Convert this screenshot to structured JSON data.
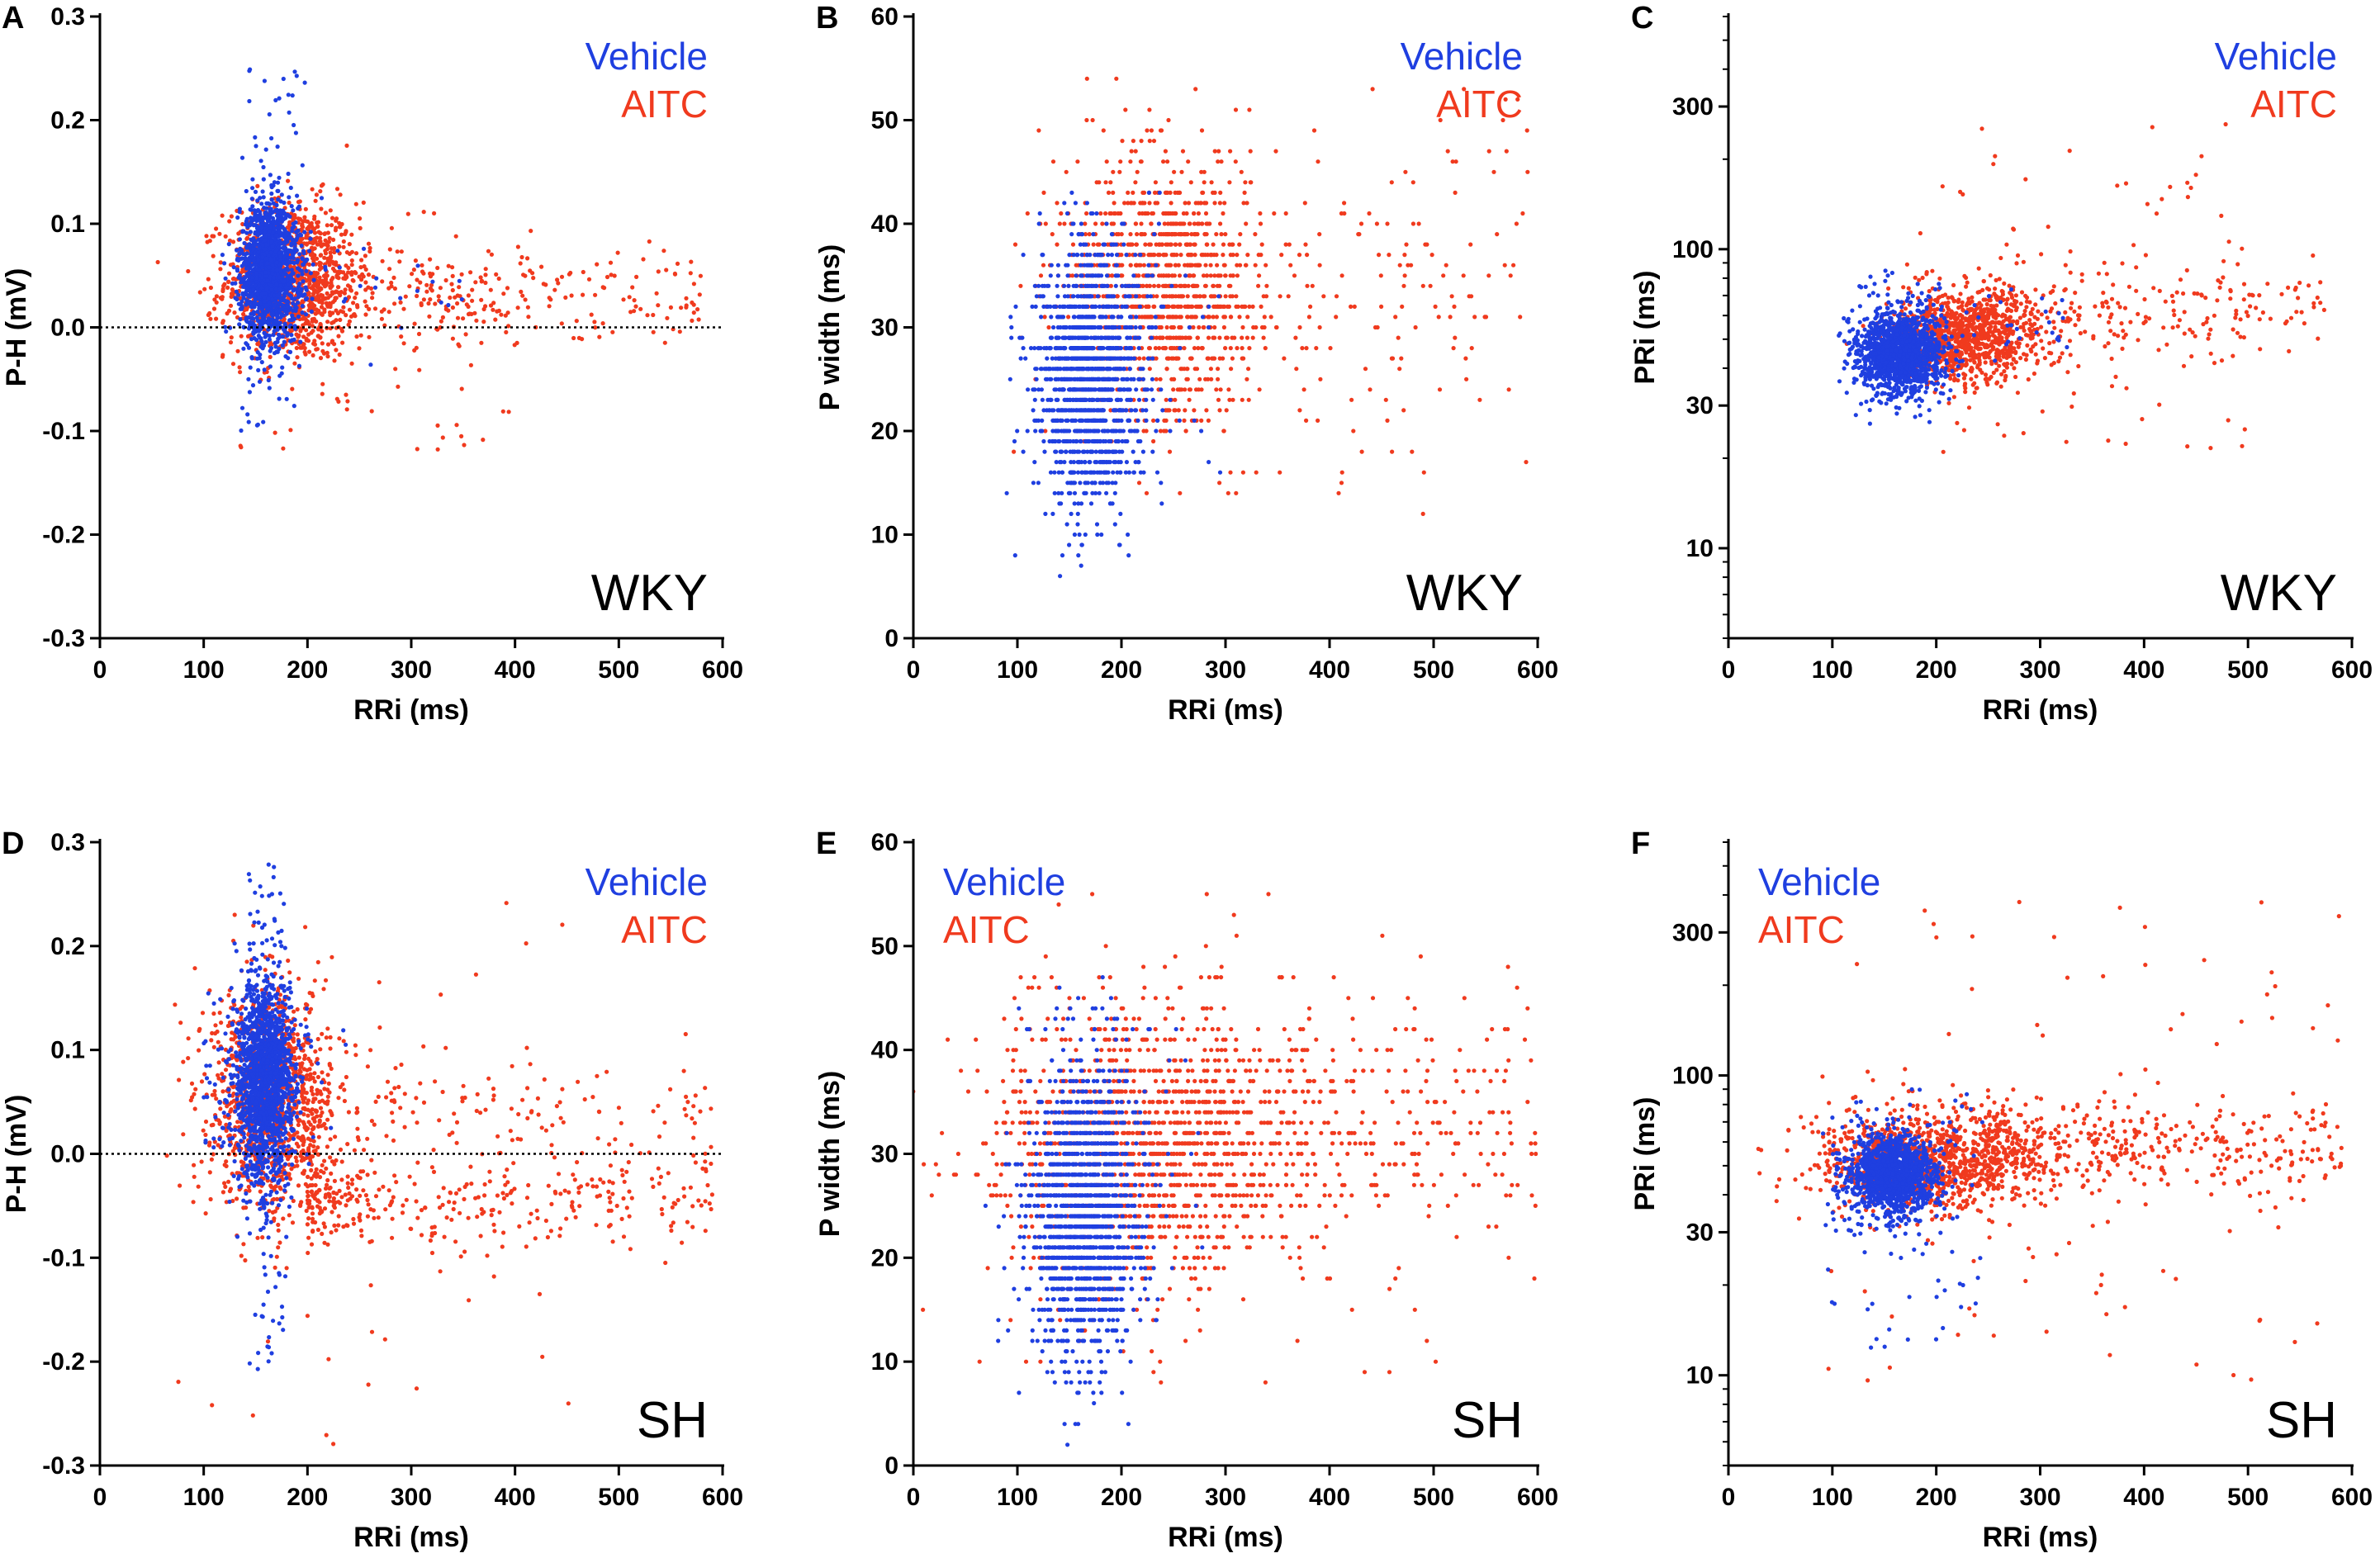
{
  "colors": {
    "vehicle": "#1f3fe0",
    "aitc": "#f03a1e",
    "axis": "#000000"
  },
  "chart_data": [
    {
      "type": "scatter",
      "panel": "A",
      "strain": "WKY",
      "xlabel": "RRi (ms)",
      "ylabel": "P-H (mV)",
      "xlim": [
        0,
        600
      ],
      "ylim": [
        -0.3,
        0.3
      ],
      "yscale": "linear",
      "xticks": [
        0,
        100,
        200,
        300,
        400,
        500,
        600
      ],
      "xtick_labels": [
        "0",
        "100",
        "200",
        "300",
        "400",
        "500",
        "600"
      ],
      "yticks": [
        -0.3,
        -0.2,
        -0.1,
        0.0,
        0.1,
        0.2,
        0.3
      ],
      "ytick_labels": [
        "-0.3",
        "-0.2",
        "-0.1",
        "0.0",
        "0.1",
        "0.2",
        "0.3"
      ],
      "reference_line": 0,
      "legend": [
        "Vehicle",
        "AITC"
      ],
      "legend_position": "top-right",
      "series": [
        {
          "name": "AITC",
          "core": {
            "x": 185,
            "xs": 32,
            "y": 0.045,
            "ys": 0.038,
            "n": 1100
          },
          "tail": {
            "x0": 205,
            "x1": 580,
            "y": 0.03,
            "ys": 0.022,
            "n": 260
          },
          "spread": {
            "x0": 120,
            "x1": 420,
            "y0": -0.12,
            "y1": 0.12,
            "n": 90
          }
        },
        {
          "name": "Vehicle",
          "core": {
            "x": 163,
            "xs": 14,
            "y": 0.055,
            "ys": 0.032,
            "n": 1500
          },
          "tail": {
            "x0": 185,
            "x1": 350,
            "y": 0.04,
            "ys": 0.025,
            "n": 35
          },
          "spread": {
            "x0": 135,
            "x1": 200,
            "y0": -0.1,
            "y1": 0.25,
            "n": 90
          }
        }
      ]
    },
    {
      "type": "scatter",
      "panel": "B",
      "strain": "WKY",
      "xlabel": "RRi (ms)",
      "ylabel": "P width (ms)",
      "xlim": [
        0,
        600
      ],
      "ylim": [
        0,
        60
      ],
      "yscale": "linear",
      "xticks": [
        0,
        100,
        200,
        300,
        400,
        500,
        600
      ],
      "xtick_labels": [
        "0",
        "100",
        "200",
        "300",
        "400",
        "500",
        "600"
      ],
      "yticks": [
        0,
        10,
        20,
        30,
        40,
        50,
        60
      ],
      "ytick_labels": [
        "0",
        "10",
        "20",
        "30",
        "40",
        "50",
        "60"
      ],
      "legend": [
        "Vehicle",
        "AITC"
      ],
      "legend_position": "top-right",
      "series": [
        {
          "name": "AITC",
          "core": {
            "x": 235,
            "xs": 45,
            "y": 34,
            "ys": 6,
            "n": 1000
          },
          "tail": {
            "x0": 240,
            "x1": 590,
            "y": 32,
            "ys": 7,
            "n": 220
          },
          "spread": {
            "x0": 120,
            "x1": 600,
            "y0": 14,
            "y1": 54,
            "n": 60
          }
        },
        {
          "name": "Vehicle",
          "core": {
            "x": 170,
            "xs": 25,
            "y": 25,
            "ys": 6,
            "n": 1400
          },
          "tail": {
            "x0": 150,
            "x1": 300,
            "y": 28,
            "ys": 6,
            "n": 60
          },
          "spread": {
            "x0": 120,
            "x1": 240,
            "y0": 11,
            "y1": 43,
            "n": 60
          }
        }
      ]
    },
    {
      "type": "scatter",
      "panel": "C",
      "strain": "WKY",
      "xlabel": "RRi (ms)",
      "ylabel": "PRi (ms)",
      "xlim": [
        0,
        600
      ],
      "ylim": [
        5,
        600
      ],
      "yscale": "log",
      "xticks": [
        0,
        100,
        200,
        300,
        400,
        500,
        600
      ],
      "xtick_labels": [
        "0",
        "100",
        "200",
        "300",
        "400",
        "500",
        "600"
      ],
      "yticks": [
        10,
        30,
        100,
        300
      ],
      "ytick_labels": [
        "10",
        "30",
        "100",
        "300"
      ],
      "legend": [
        "Vehicle",
        "AITC"
      ],
      "legend_position": "top-right",
      "series": [
        {
          "name": "AITC",
          "core": {
            "x": 230,
            "xs": 35,
            "y": 52,
            "ys": 9,
            "n": 1000
          },
          "tail": {
            "x0": 240,
            "x1": 580,
            "y": 60,
            "ys": 10,
            "n": 230
          },
          "spread": {
            "x0": 180,
            "x1": 500,
            "y0": 20,
            "y1": 290,
            "n": 90
          }
        },
        {
          "name": "Vehicle",
          "core": {
            "x": 165,
            "xs": 20,
            "y": 45,
            "ys": 7,
            "n": 1400
          },
          "tail": {
            "x0": 190,
            "x1": 330,
            "y": 55,
            "ys": 8,
            "n": 40
          },
          "spread": {
            "x0": 120,
            "x1": 210,
            "y0": 25,
            "y1": 85,
            "n": 60
          }
        }
      ]
    },
    {
      "type": "scatter",
      "panel": "D",
      "strain": "SH",
      "xlabel": "RRi (ms)",
      "ylabel": "P-H (mV)",
      "xlim": [
        0,
        600
      ],
      "ylim": [
        -0.3,
        0.3
      ],
      "yscale": "linear",
      "xticks": [
        0,
        100,
        200,
        300,
        400,
        500,
        600
      ],
      "xtick_labels": [
        "0",
        "100",
        "200",
        "300",
        "400",
        "500",
        "600"
      ],
      "yticks": [
        -0.3,
        -0.2,
        -0.1,
        0.0,
        0.1,
        0.2,
        0.3
      ],
      "ytick_labels": [
        "-0.3",
        "-0.2",
        "-0.1",
        "0.0",
        "0.1",
        "0.2",
        "0.3"
      ],
      "reference_line": 0,
      "legend": [
        "Vehicle",
        "AITC"
      ],
      "legend_position": "top-right",
      "series": [
        {
          "name": "AITC",
          "core": {
            "x": 165,
            "xs": 30,
            "y": 0.05,
            "ys": 0.055,
            "n": 1100
          },
          "tail": {
            "x0": 200,
            "x1": 590,
            "y": -0.045,
            "ys": 0.02,
            "n": 320
          },
          "tail2": {
            "x0": 200,
            "x1": 590,
            "y": 0.04,
            "ys": 0.025,
            "n": 160
          },
          "spread": {
            "x0": 60,
            "x1": 460,
            "y0": -0.28,
            "y1": 0.26,
            "n": 60
          }
        },
        {
          "name": "Vehicle",
          "core": {
            "x": 158,
            "xs": 14,
            "y": 0.07,
            "ys": 0.05,
            "n": 1600
          },
          "tail": {
            "x0": 100,
            "x1": 240,
            "y": 0.06,
            "ys": 0.05,
            "n": 60
          },
          "spread": {
            "x0": 140,
            "x1": 180,
            "y0": -0.21,
            "y1": 0.28,
            "n": 90
          }
        }
      ]
    },
    {
      "type": "scatter",
      "panel": "E",
      "strain": "SH",
      "xlabel": "RRi (ms)",
      "ylabel": "P width (ms)",
      "xlim": [
        0,
        600
      ],
      "ylim": [
        0,
        60
      ],
      "yscale": "linear",
      "xticks": [
        0,
        100,
        200,
        300,
        400,
        500,
        600
      ],
      "xtick_labels": [
        "0",
        "100",
        "200",
        "300",
        "400",
        "500",
        "600"
      ],
      "yticks": [
        0,
        10,
        20,
        30,
        40,
        50,
        60
      ],
      "ytick_labels": [
        "0",
        "10",
        "20",
        "30",
        "40",
        "50",
        "60"
      ],
      "legend": [
        "Vehicle",
        "AITC"
      ],
      "legend_position": "top-left",
      "series": [
        {
          "name": "AITC",
          "core": {
            "x": 220,
            "xs": 70,
            "y": 30,
            "ys": 7,
            "n": 1200
          },
          "tail": {
            "x0": 280,
            "x1": 600,
            "y": 33,
            "ys": 6,
            "n": 380
          },
          "spread": {
            "x0": 60,
            "x1": 600,
            "y0": 8,
            "y1": 57,
            "n": 60
          }
        },
        {
          "name": "Vehicle",
          "core": {
            "x": 165,
            "xs": 25,
            "y": 24,
            "ys": 7,
            "n": 1400
          },
          "tail": {
            "x0": 140,
            "x1": 280,
            "y": 28,
            "ys": 7,
            "n": 60
          },
          "spread": {
            "x0": 80,
            "x1": 230,
            "y0": 9,
            "y1": 47,
            "n": 60
          }
        }
      ]
    },
    {
      "type": "scatter",
      "panel": "F",
      "strain": "SH",
      "xlabel": "RRi (ms)",
      "ylabel": "PRi (ms)",
      "xlim": [
        0,
        600
      ],
      "ylim": [
        5,
        600
      ],
      "yscale": "log",
      "xticks": [
        0,
        100,
        200,
        300,
        400,
        500,
        600
      ],
      "xtick_labels": [
        "0",
        "100",
        "200",
        "300",
        "400",
        "500",
        "600"
      ],
      "yticks": [
        10,
        30,
        100,
        300
      ],
      "ytick_labels": [
        "10",
        "30",
        "100",
        "300"
      ],
      "legend": [
        "Vehicle",
        "AITC"
      ],
      "legend_position": "top-left",
      "series": [
        {
          "name": "AITC",
          "core": {
            "x": 190,
            "xs": 55,
            "y": 52,
            "ys": 10,
            "n": 1100
          },
          "tail": {
            "x0": 250,
            "x1": 590,
            "y": 58,
            "ys": 9,
            "n": 380
          },
          "spread": {
            "x0": 90,
            "x1": 590,
            "y0": 9,
            "y1": 400,
            "n": 100
          }
        },
        {
          "name": "Vehicle",
          "core": {
            "x": 160,
            "xs": 20,
            "y": 47,
            "ys": 7,
            "n": 1300
          },
          "tail": {
            "x0": 100,
            "x1": 220,
            "y": 40,
            "ys": 12,
            "n": 60
          },
          "spread": {
            "x0": 90,
            "x1": 250,
            "y0": 12,
            "y1": 90,
            "n": 60
          }
        }
      ]
    }
  ]
}
